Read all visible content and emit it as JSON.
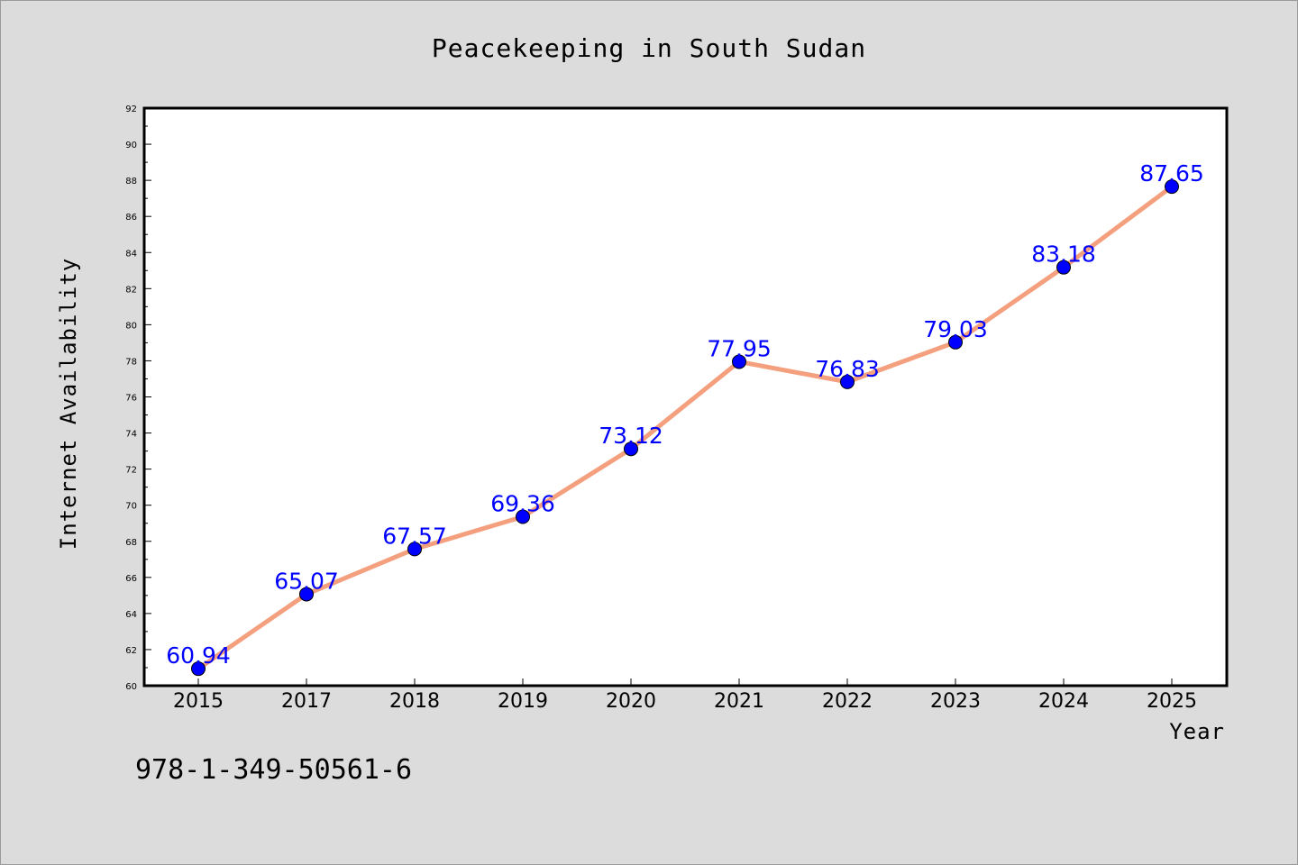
{
  "chart_data": {
    "type": "line",
    "title": "Peacekeeping in South Sudan",
    "xlabel": "Year",
    "ylabel": "Internet Availability",
    "categories": [
      "2015",
      "2017",
      "2018",
      "2019",
      "2020",
      "2021",
      "2022",
      "2023",
      "2024",
      "2025"
    ],
    "series": [
      {
        "values": [
          60.94,
          65.07,
          67.57,
          69.36,
          73.12,
          77.95,
          76.83,
          79.03,
          83.18,
          87.65
        ]
      }
    ],
    "ylim": [
      60,
      92
    ],
    "yticks": [
      60,
      62,
      64,
      66,
      68,
      70,
      72,
      74,
      76,
      78,
      80,
      82,
      84,
      86,
      88,
      90,
      92
    ],
    "data_labels": [
      "60.94",
      "65.07",
      "67.57",
      "69.36",
      "73.12",
      "77.95",
      "76.83",
      "79.03",
      "83.18",
      "87.65"
    ],
    "grid": false,
    "legend": "none",
    "colors": {
      "line": "#f4a07e",
      "marker": "#0000ff",
      "label": "#0000ff",
      "background": "#dcdcdc",
      "plot_bg": "#ffffff"
    }
  },
  "footer_text": "978-1-349-50561-6"
}
